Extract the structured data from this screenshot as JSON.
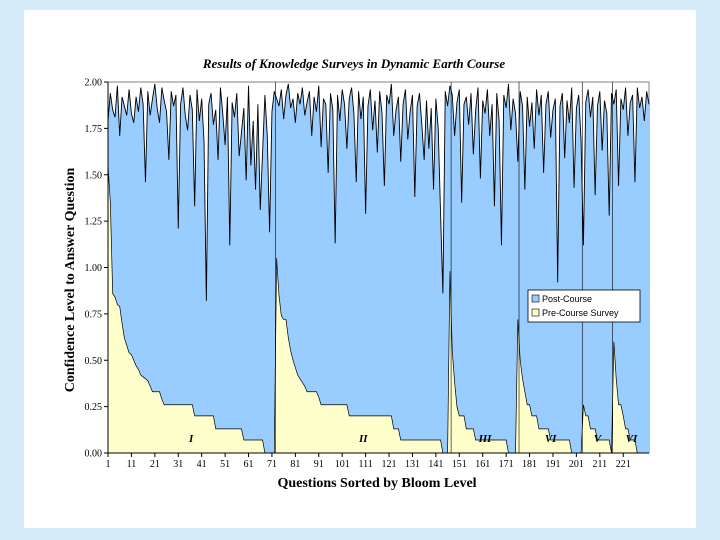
{
  "chart_data": {
    "type": "area",
    "title": "Results of Knowledge Surveys in Dynamic Earth Course",
    "xlabel": "Questions Sorted by Bloom Level",
    "ylabel": "Confidence Level to Answer Question",
    "xlim": [
      1,
      232
    ],
    "ylim": [
      0,
      2
    ],
    "yticks": [
      "0.00",
      "0.25",
      "0.50",
      "0.75",
      "1.00",
      "1.25",
      "1.50",
      "1.75",
      "2.00"
    ],
    "xticks": [
      "1",
      "11",
      "21",
      "31",
      "41",
      "51",
      "61",
      "71",
      "81",
      "91",
      "101",
      "111",
      "121",
      "131",
      "141",
      "151",
      "161",
      "171",
      "181",
      "191",
      "201",
      "211",
      "221"
    ],
    "colors": {
      "post": "#99ccff",
      "pre": "#ffffcc",
      "line": "#000000"
    },
    "legend": {
      "position": "right",
      "entries": [
        "Post-Course",
        "Pre-Course Survey"
      ]
    },
    "bloom_levels": [
      {
        "label": "I",
        "start": 1,
        "end": 72
      },
      {
        "label": "II",
        "start": 73,
        "end": 147
      },
      {
        "label": "III",
        "start": 148,
        "end": 176
      },
      {
        "label": "VI",
        "start": 177,
        "end": 203
      },
      {
        "label": "V",
        "start": 204,
        "end": 216
      },
      {
        "label": "VI",
        "start": 217,
        "end": 232
      }
    ],
    "series": [
      {
        "name": "Post-Course",
        "values": [
          1.79,
          1.94,
          1.85,
          1.81,
          1.98,
          1.71,
          1.92,
          1.87,
          1.82,
          1.96,
          1.83,
          1.78,
          1.92,
          1.84,
          1.97,
          1.88,
          1.46,
          1.95,
          1.82,
          1.91,
          1.99,
          1.86,
          1.78,
          1.97,
          1.9,
          1.84,
          1.58,
          1.95,
          1.87,
          1.93,
          1.21,
          1.88,
          1.97,
          1.82,
          1.74,
          1.93,
          1.85,
          1.33,
          1.96,
          1.79,
          1.91,
          1.68,
          0.82,
          1.88,
          1.94,
          1.77,
          1.85,
          1.58,
          1.97,
          1.83,
          1.66,
          1.92,
          1.12,
          1.89,
          1.81,
          1.94,
          1.6,
          1.73,
          1.86,
          1.47,
          1.98,
          1.55,
          1.79,
          1.42,
          1.88,
          1.31,
          1.62,
          1.93,
          1.71,
          1.19,
          1.84,
          1.95,
          1.91,
          1.87,
          1.96,
          1.8,
          1.93,
          1.99,
          1.86,
          1.91,
          1.78,
          1.94,
          1.88,
          1.97,
          1.82,
          1.89,
          1.95,
          1.71,
          1.92,
          1.84,
          1.98,
          1.65,
          1.91,
          1.88,
          1.51,
          1.94,
          1.85,
          1.13,
          1.93,
          1.79,
          1.96,
          1.88,
          1.64,
          1.91,
          1.97,
          1.83,
          1.46,
          1.95,
          1.8,
          1.92,
          1.29,
          1.87,
          1.96,
          1.74,
          1.9,
          1.62,
          1.95,
          1.83,
          1.44,
          1.93,
          1.88,
          1.99,
          1.71,
          1.85,
          1.92,
          1.57,
          1.88,
          1.96,
          1.69,
          1.84,
          1.93,
          1.38,
          1.87,
          1.94,
          1.77,
          1.58,
          1.9,
          1.64,
          1.86,
          1.42,
          1.91,
          1.75,
          1.29,
          0.86,
          1.95,
          1.87,
          1.98,
          1.93,
          1.71,
          1.89,
          1.96,
          1.35,
          1.88,
          1.92,
          1.77,
          1.94,
          1.61,
          1.85,
          1.97,
          1.48,
          1.9,
          1.83,
          1.96,
          1.71,
          1.88,
          1.33,
          1.94,
          1.79,
          1.12,
          1.93,
          1.86,
          1.99,
          1.74,
          1.91,
          1.83,
          1.57,
          1.95,
          1.87,
          1.42,
          1.92,
          1.76,
          1.89,
          1.64,
          1.96,
          1.82,
          1.93,
          1.51,
          1.88,
          1.95,
          1.7,
          1.85,
          1.91,
          0.92,
          1.87,
          1.94,
          1.59,
          1.9,
          1.78,
          1.97,
          1.43,
          1.86,
          1.93,
          1.68,
          1.12,
          1.89,
          1.96,
          1.81,
          1.92,
          1.39,
          1.87,
          1.95,
          1.63,
          1.9,
          1.83,
          1.28,
          1.94,
          1.88,
          1.96,
          1.44,
          1.91,
          1.85,
          1.97,
          1.71,
          1.89,
          1.93,
          1.46,
          1.97,
          1.86,
          1.92,
          1.79,
          1.95,
          1.88
        ]
      },
      {
        "name": "Pre-Course Survey",
        "values": [
          1.55,
          1.35,
          0.86,
          0.84,
          0.8,
          0.79,
          0.7,
          0.62,
          0.58,
          0.54,
          0.53,
          0.5,
          0.47,
          0.45,
          0.42,
          0.41,
          0.4,
          0.39,
          0.36,
          0.33,
          0.33,
          0.33,
          0.33,
          0.29,
          0.26,
          0.26,
          0.26,
          0.26,
          0.26,
          0.26,
          0.26,
          0.26,
          0.26,
          0.26,
          0.26,
          0.26,
          0.26,
          0.2,
          0.2,
          0.2,
          0.2,
          0.2,
          0.2,
          0.2,
          0.2,
          0.2,
          0.13,
          0.13,
          0.13,
          0.13,
          0.13,
          0.13,
          0.13,
          0.13,
          0.13,
          0.13,
          0.13,
          0.13,
          0.07,
          0.07,
          0.07,
          0.07,
          0.07,
          0.07,
          0.07,
          0.07,
          0.07,
          0.0,
          0.0,
          0.0,
          0.0,
          0.0,
          1.05,
          0.85,
          0.74,
          0.72,
          0.72,
          0.62,
          0.55,
          0.5,
          0.46,
          0.42,
          0.4,
          0.38,
          0.36,
          0.33,
          0.33,
          0.33,
          0.33,
          0.33,
          0.3,
          0.26,
          0.26,
          0.26,
          0.26,
          0.26,
          0.26,
          0.26,
          0.26,
          0.26,
          0.26,
          0.26,
          0.26,
          0.2,
          0.2,
          0.2,
          0.2,
          0.2,
          0.2,
          0.2,
          0.2,
          0.2,
          0.2,
          0.2,
          0.2,
          0.2,
          0.2,
          0.2,
          0.2,
          0.2,
          0.2,
          0.2,
          0.13,
          0.13,
          0.13,
          0.07,
          0.07,
          0.07,
          0.07,
          0.07,
          0.07,
          0.07,
          0.07,
          0.07,
          0.07,
          0.07,
          0.07,
          0.07,
          0.07,
          0.07,
          0.07,
          0.07,
          0.07,
          0.0,
          0.0,
          0.0,
          0.98,
          0.55,
          0.38,
          0.25,
          0.2,
          0.2,
          0.2,
          0.13,
          0.13,
          0.13,
          0.13,
          0.07,
          0.07,
          0.07,
          0.07,
          0.07,
          0.07,
          0.07,
          0.07,
          0.07,
          0.07,
          0.07,
          0.07,
          0.07,
          0.07,
          0.0,
          0.0,
          0.0,
          0.0,
          0.72,
          0.5,
          0.4,
          0.33,
          0.26,
          0.26,
          0.2,
          0.2,
          0.2,
          0.13,
          0.13,
          0.13,
          0.13,
          0.13,
          0.07,
          0.07,
          0.07,
          0.07,
          0.07,
          0.07,
          0.07,
          0.07,
          0.07,
          0.0,
          0.0,
          0.0,
          0.0,
          0.0,
          0.26,
          0.2,
          0.2,
          0.13,
          0.13,
          0.13,
          0.07,
          0.07,
          0.07,
          0.07,
          0.07,
          0.07,
          0.0,
          0.6,
          0.4,
          0.26,
          0.26,
          0.2,
          0.13,
          0.13,
          0.07,
          0.07,
          0.07,
          0.0,
          0.0,
          0.0,
          0.0,
          0.0,
          0.0
        ]
      }
    ]
  }
}
